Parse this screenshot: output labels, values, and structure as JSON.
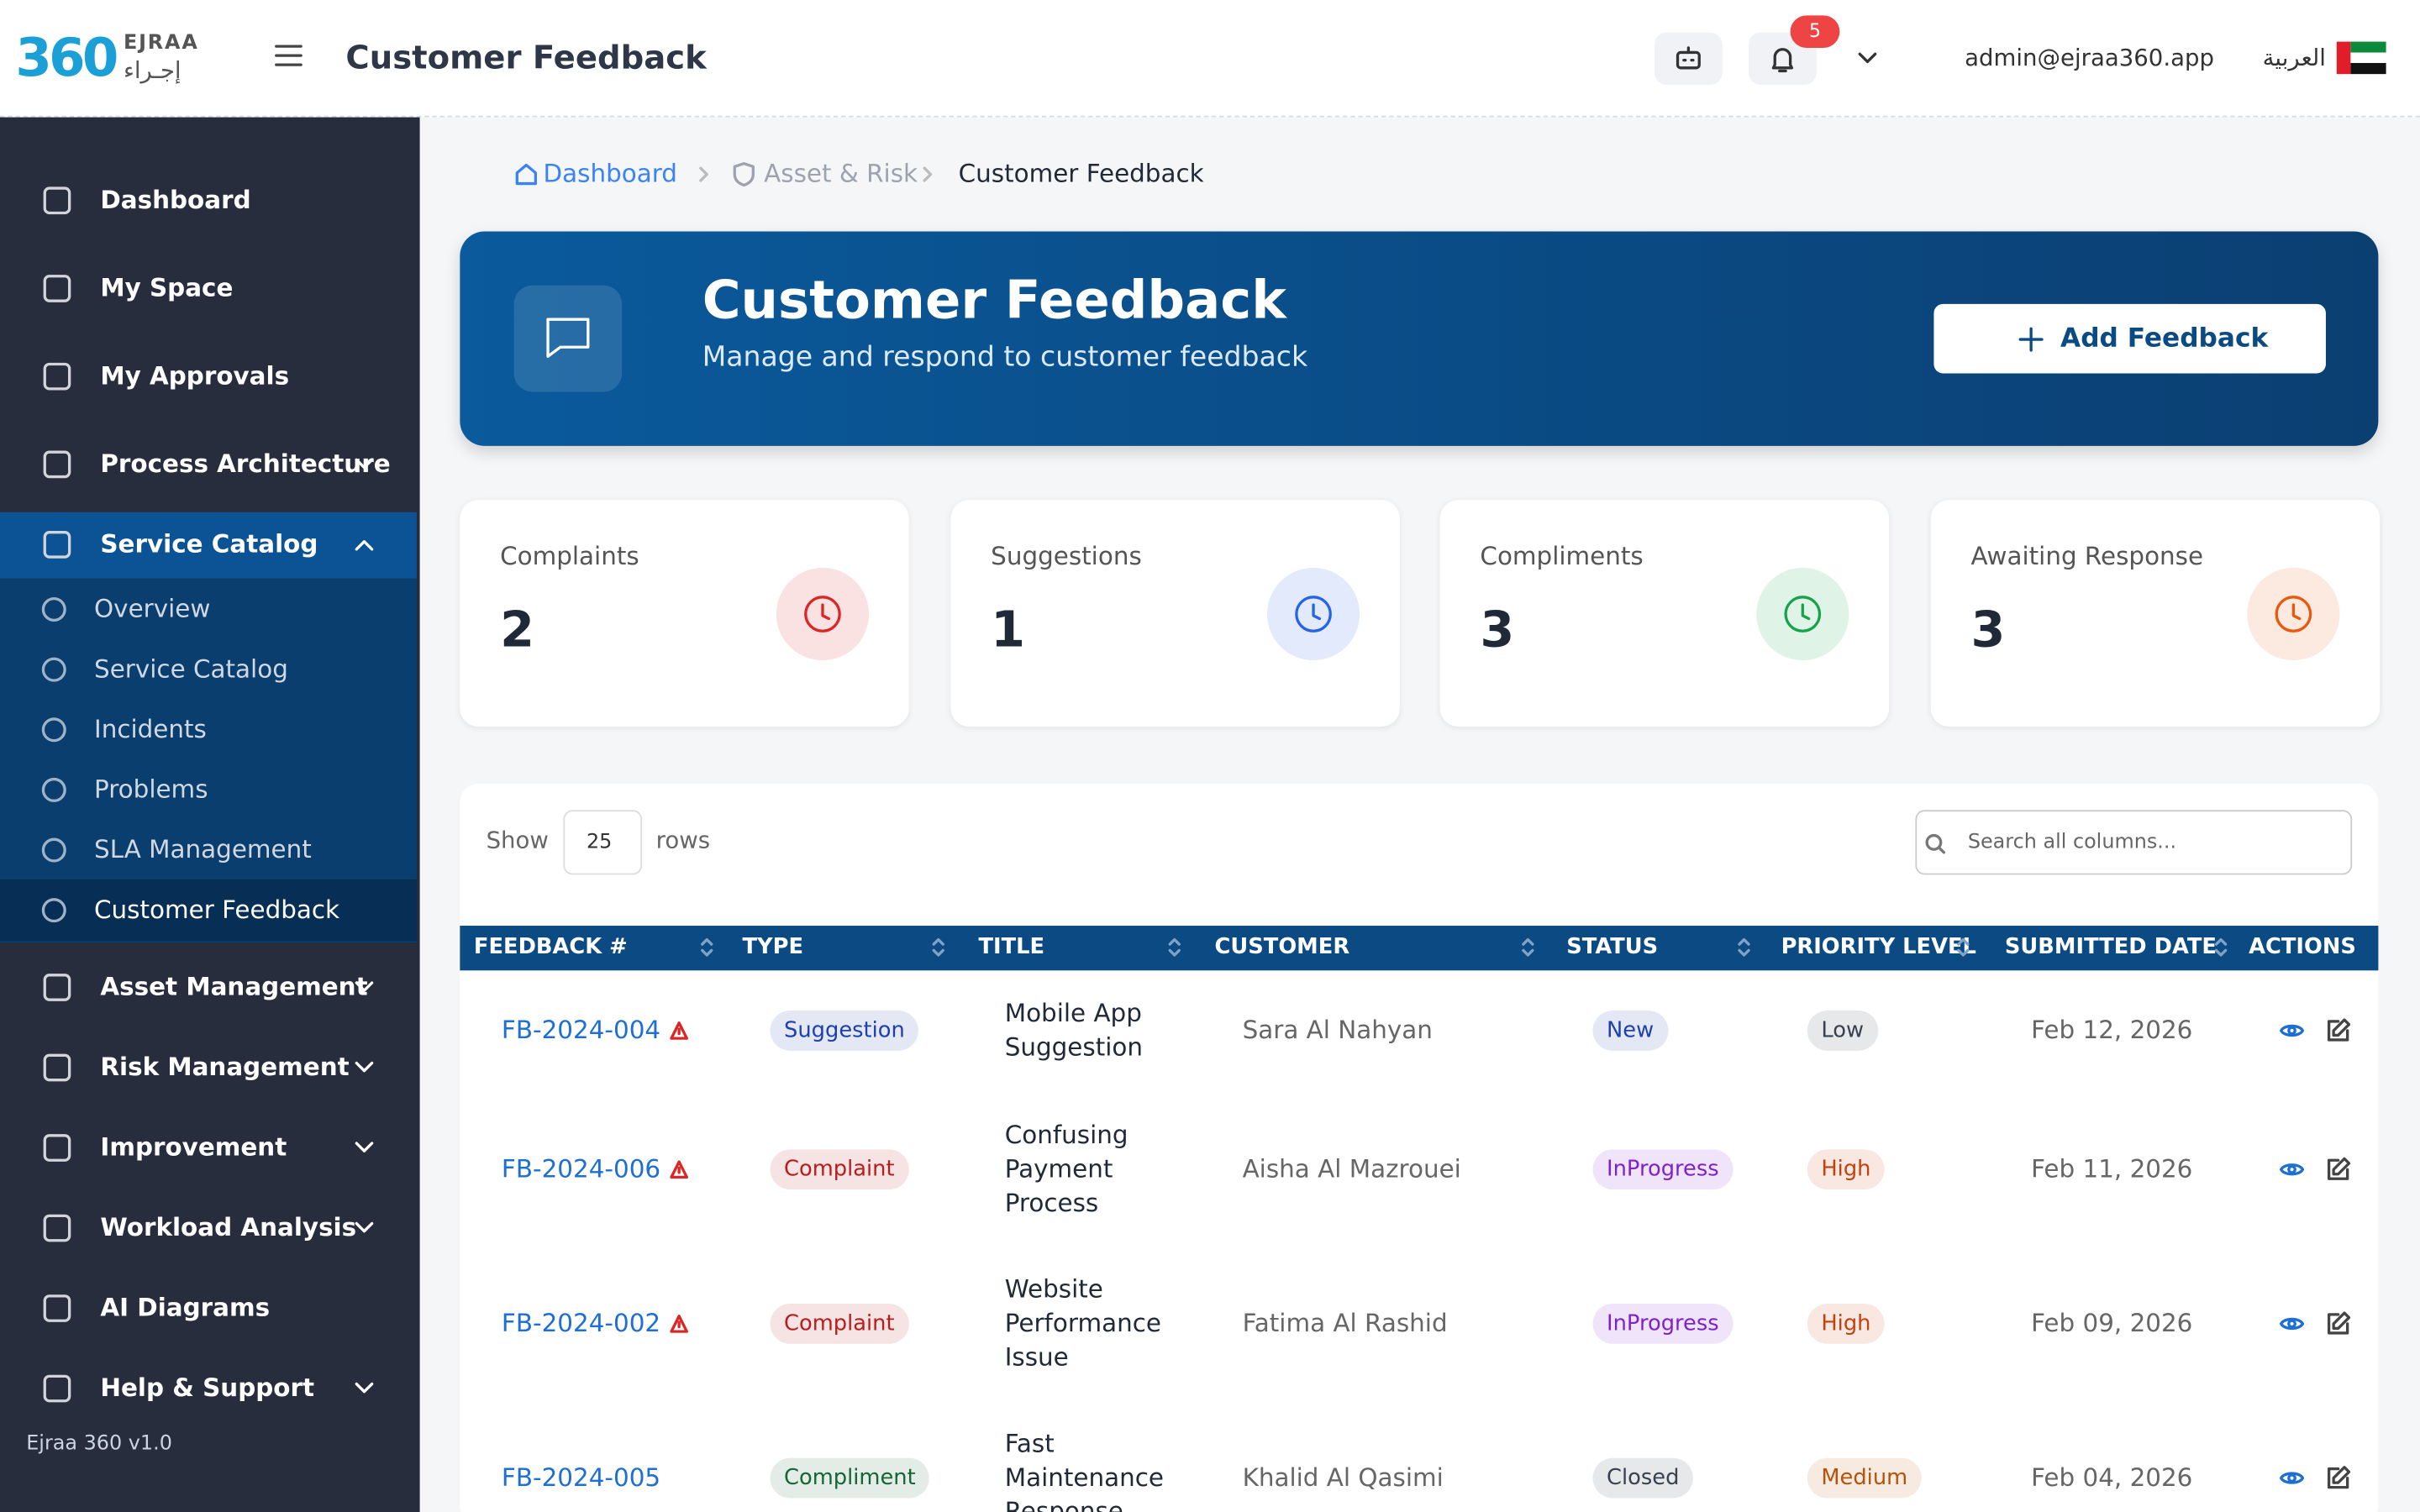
{
  "header": {
    "logo_number": "360",
    "logo_text": "EJRAA",
    "logo_arabic": "إجـراء",
    "page_title": "Customer Feedback",
    "notification_count": 5,
    "user_email": "admin@ejraa360.app",
    "language": "العربية"
  },
  "sidebar": {
    "items": [
      {
        "label": "Dashboard"
      },
      {
        "label": "My Space"
      },
      {
        "label": "My Approvals"
      },
      {
        "label": "Process Architecture",
        "expandable": true
      },
      {
        "label": "Service Catalog",
        "expandable": true,
        "expanded": true,
        "children": [
          {
            "label": "Overview"
          },
          {
            "label": "Service Catalog"
          },
          {
            "label": "Incidents"
          },
          {
            "label": "Problems"
          },
          {
            "label": "SLA Management"
          },
          {
            "label": "Customer Feedback",
            "active": true
          }
        ]
      },
      {
        "label": "Asset Management",
        "expandable": true
      },
      {
        "label": "Risk Management",
        "expandable": true
      },
      {
        "label": "Improvement",
        "expandable": true
      },
      {
        "label": "Workload Analysis",
        "expandable": true
      },
      {
        "label": "AI Diagrams"
      },
      {
        "label": "Help & Support",
        "expandable": true
      }
    ],
    "version": "Ejraa 360 v1.0"
  },
  "breadcrumb": [
    "Dashboard",
    "Asset & Risk",
    "Customer Feedback"
  ],
  "banner": {
    "title": "Customer Feedback",
    "subtitle": "Manage and respond to customer feedback",
    "button": "Add Feedback"
  },
  "stats": [
    {
      "label": "Complaints",
      "value": 2,
      "color": "#dc2626"
    },
    {
      "label": "Suggestions",
      "value": 1,
      "color": "#2563eb"
    },
    {
      "label": "Compliments",
      "value": 3,
      "color": "#16a34a"
    },
    {
      "label": "Awaiting Response",
      "value": 3,
      "color": "#ea580c"
    }
  ],
  "table": {
    "show_label": "Show",
    "rows_per_page": 25,
    "rows_label": "rows",
    "search_placeholder": "Search all columns...",
    "columns": [
      "FEEDBACK #",
      "TYPE",
      "TITLE",
      "CUSTOMER",
      "STATUS",
      "PRIORITY LEVEL",
      "SUBMITTED DATE",
      "ACTIONS"
    ],
    "rows": [
      {
        "id": "FB-2024-004",
        "flagged": true,
        "type": "Suggestion",
        "type_color": "#1e40af",
        "title": "Mobile App Suggestion",
        "customer": "Sara Al Nahyan",
        "status": "New",
        "status_color": "#1e40af",
        "priority": "Low",
        "priority_color": "#374151",
        "date": "Feb 12, 2026"
      },
      {
        "id": "FB-2024-006",
        "flagged": true,
        "type": "Complaint",
        "type_color": "#b91c1c",
        "title": "Confusing Payment Process",
        "customer": "Aisha Al Mazrouei",
        "status": "InProgress",
        "status_color": "#7e22ce",
        "priority": "High",
        "priority_color": "#c2410c",
        "date": "Feb 11, 2026"
      },
      {
        "id": "FB-2024-002",
        "flagged": true,
        "type": "Complaint",
        "type_color": "#b91c1c",
        "title": "Website Performance Issue",
        "customer": "Fatima Al Rashid",
        "status": "InProgress",
        "status_color": "#7e22ce",
        "priority": "High",
        "priority_color": "#c2410c",
        "date": "Feb 09, 2026"
      },
      {
        "id": "FB-2024-005",
        "flagged": false,
        "type": "Compliment",
        "type_color": "#166534",
        "title": "Fast Maintenance Response",
        "customer": "Khalid Al Qasimi",
        "status": "Closed",
        "status_color": "#374151",
        "priority": "Medium",
        "priority_color": "#b45309",
        "date": "Feb 04, 2026"
      }
    ]
  }
}
